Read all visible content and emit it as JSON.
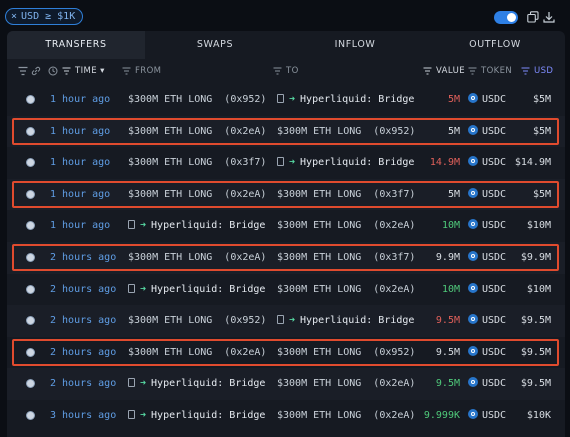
{
  "filter_chip": {
    "close": "×",
    "label": "USD ≥ $1K"
  },
  "tabs": [
    "TRANSFERS",
    "SWAPS",
    "INFLOW",
    "OUTFLOW"
  ],
  "columns": {
    "time": "TIME",
    "from": "FROM",
    "to": "TO",
    "value": "VALUE",
    "token": "TOKEN",
    "usd": "USD"
  },
  "rows": [
    {
      "time": "1 hour ago",
      "from": "$300M ETH LONG",
      "from_addr": "(0x952)",
      "from_type": "entity",
      "to": "Hyperliquid: Bridge",
      "to_addr": "",
      "to_type": "bridge",
      "value": "5M",
      "value_color": "red",
      "token": "USDC",
      "usd": "$5M",
      "highlighted": false
    },
    {
      "time": "1 hour ago",
      "from": "$300M ETH LONG",
      "from_addr": "(0x2eA)",
      "from_type": "entity",
      "to": "$300M ETH LONG",
      "to_addr": "(0x952)",
      "to_type": "entity",
      "value": "5M",
      "value_color": "white",
      "token": "USDC",
      "usd": "$5M",
      "highlighted": true
    },
    {
      "time": "1 hour ago",
      "from": "$300M ETH LONG",
      "from_addr": "(0x3f7)",
      "from_type": "entity",
      "to": "Hyperliquid: Bridge",
      "to_addr": "",
      "to_type": "bridge",
      "value": "14.9M",
      "value_color": "red",
      "token": "USDC",
      "usd": "$14.9M",
      "highlighted": false
    },
    {
      "time": "1 hour ago",
      "from": "$300M ETH LONG",
      "from_addr": "(0x2eA)",
      "from_type": "entity",
      "to": "$300M ETH LONG",
      "to_addr": "(0x3f7)",
      "to_type": "entity",
      "value": "5M",
      "value_color": "white",
      "token": "USDC",
      "usd": "$5M",
      "highlighted": true
    },
    {
      "time": "1 hour ago",
      "from": "Hyperliquid: Bridge",
      "from_addr": "",
      "from_type": "bridge",
      "to": "$300M ETH LONG",
      "to_addr": "(0x2eA)",
      "to_type": "entity",
      "value": "10M",
      "value_color": "green",
      "token": "USDC",
      "usd": "$10M",
      "highlighted": false
    },
    {
      "time": "2 hours ago",
      "from": "$300M ETH LONG",
      "from_addr": "(0x2eA)",
      "from_type": "entity",
      "to": "$300M ETH LONG",
      "to_addr": "(0x3f7)",
      "to_type": "entity",
      "value": "9.9M",
      "value_color": "white",
      "token": "USDC",
      "usd": "$9.9M",
      "highlighted": true
    },
    {
      "time": "2 hours ago",
      "from": "Hyperliquid: Bridge",
      "from_addr": "",
      "from_type": "bridge",
      "to": "$300M ETH LONG",
      "to_addr": "(0x2eA)",
      "to_type": "entity",
      "value": "10M",
      "value_color": "green",
      "token": "USDC",
      "usd": "$10M",
      "highlighted": false
    },
    {
      "time": "2 hours ago",
      "from": "$300M ETH LONG",
      "from_addr": "(0x952)",
      "from_type": "entity",
      "to": "Hyperliquid: Bridge",
      "to_addr": "",
      "to_type": "bridge",
      "value": "9.5M",
      "value_color": "red",
      "token": "USDC",
      "usd": "$9.5M",
      "highlighted": false
    },
    {
      "time": "2 hours ago",
      "from": "$300M ETH LONG",
      "from_addr": "(0x2eA)",
      "from_type": "entity",
      "to": "$300M ETH LONG",
      "to_addr": "(0x952)",
      "to_type": "entity",
      "value": "9.5M",
      "value_color": "white",
      "token": "USDC",
      "usd": "$9.5M",
      "highlighted": true
    },
    {
      "time": "2 hours ago",
      "from": "Hyperliquid: Bridge",
      "from_addr": "",
      "from_type": "bridge",
      "to": "$300M ETH LONG",
      "to_addr": "(0x2eA)",
      "to_type": "entity",
      "value": "9.5M",
      "value_color": "green",
      "token": "USDC",
      "usd": "$9.5M",
      "highlighted": false
    },
    {
      "time": "3 hours ago",
      "from": "Hyperliquid: Bridge",
      "from_addr": "",
      "from_type": "bridge",
      "to": "$300M ETH LONG",
      "to_addr": "(0x2eA)",
      "to_type": "entity",
      "value": "9.999K",
      "value_color": "green",
      "token": "USDC",
      "usd": "$10K",
      "highlighted": false
    }
  ],
  "colors": {
    "accent": "#2e80e6",
    "highlight": "#e04b2e",
    "red": "#e0605a",
    "green": "#4fc97a",
    "time": "#5f9de4"
  },
  "icons": {
    "filter": "filter-icon",
    "link": "link-icon",
    "clock": "clock-icon",
    "copy": "copy-icon",
    "download": "download-icon",
    "usdc": "usdc-icon",
    "bridge": "bridge-arrow-icon",
    "contract": "contract-doc-icon"
  }
}
